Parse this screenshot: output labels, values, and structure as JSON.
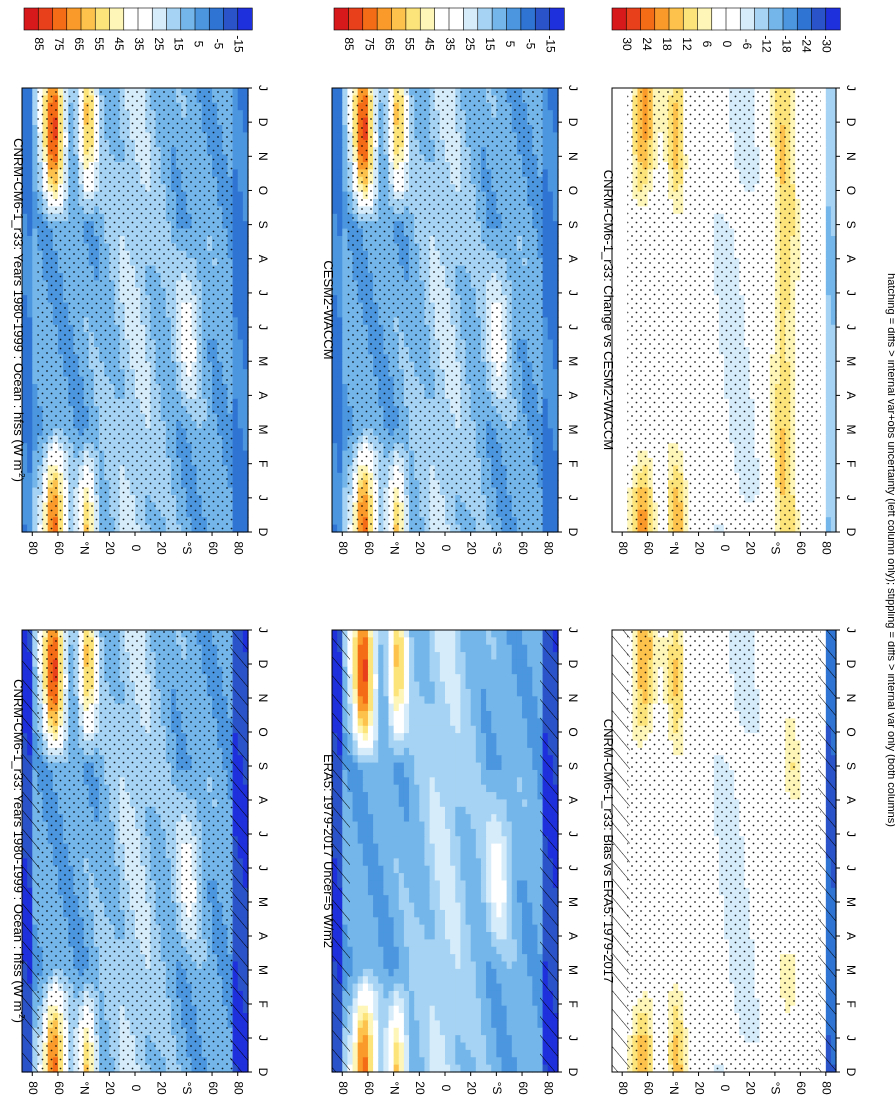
{
  "figure_caption": "hatching = diffs > internal var+obs uncertainty (left column only); stippling = diffs > internal var only (both columns)",
  "month_labels": [
    "D",
    "J",
    "F",
    "M",
    "A",
    "M",
    "J",
    "J",
    "A",
    "S",
    "O",
    "N",
    "D",
    "J"
  ],
  "lat_labels": [
    "80",
    "60",
    "°N",
    "20",
    "0",
    "20",
    "°S",
    "60",
    "80"
  ],
  "colors": {
    "abs_scale": [
      "#d7191c",
      "#e8401a",
      "#f46d16",
      "#f99a2a",
      "#fdc24b",
      "#fde47a",
      "#fef6b8",
      "#ffffff",
      "#ffffff",
      "#d6ecfb",
      "#a6d3f3",
      "#74b6ea",
      "#4b96df",
      "#2f74d3",
      "#2a52c9",
      "#1e2fdc"
    ],
    "diff_scale": [
      "#d7191c",
      "#e8401a",
      "#f46d16",
      "#f99a2a",
      "#fdc24b",
      "#fde47a",
      "#fef6b8",
      "#ffffff",
      "#ffffff",
      "#d6ecfb",
      "#a6d3f3",
      "#74b6ea",
      "#4b96df",
      "#2f74d3",
      "#2a52c9",
      "#1e2fdc"
    ]
  },
  "chart_data": [
    {
      "type": "heatmap",
      "title": "CNRM-CM6-1_r33: Years 1980-1999 : Ocean : hfss (W m⁻²)",
      "title_display": "CNRM-CM6-1_r33: Years 1980-1999 : Ocean : hfss (W m",
      "title_sup": "-2",
      "title_end": ")",
      "x": [
        "D",
        "J",
        "F",
        "M",
        "A",
        "M",
        "J",
        "J",
        "A",
        "S",
        "O",
        "N",
        "D",
        "J"
      ],
      "y": [
        "80N",
        "60N",
        "40N",
        "20N",
        "0",
        "20S",
        "40S",
        "60S",
        "80S"
      ],
      "colorbar_ticks": [
        "85",
        "75",
        "65",
        "55",
        "45",
        "35",
        "25",
        "15",
        "5",
        "-5",
        "-15"
      ],
      "hatching": true,
      "stippling": true
    },
    {
      "type": "heatmap",
      "title": "CNRM-CM6-1_r33: Years 1980-1999 : Ocean : hfss (W m⁻²)",
      "title_display": "CNRM-CM6-1_r33: Years 1980-1999 : Ocean : hfss (W m",
      "title_sup": "-2",
      "title_end": ")",
      "x": [
        "D",
        "J",
        "F",
        "M",
        "A",
        "M",
        "J",
        "J",
        "A",
        "S",
        "O",
        "N",
        "D",
        "J"
      ],
      "y": [
        "80N",
        "60N",
        "40N",
        "20N",
        "0",
        "20S",
        "40S",
        "60S",
        "80S"
      ],
      "colorbar_ticks": [
        "85",
        "75",
        "65",
        "55",
        "45",
        "35",
        "25",
        "15",
        "5",
        "-5",
        "-15"
      ],
      "hatching": false,
      "stippling": true
    },
    {
      "type": "heatmap",
      "title": "ERA5: 1979-2017 Uncer=5 W/m2",
      "x": [
        "D",
        "J",
        "F",
        "M",
        "A",
        "M",
        "J",
        "J",
        "A",
        "S",
        "O",
        "N",
        "D",
        "J"
      ],
      "y": [
        "80N",
        "60N",
        "40N",
        "20N",
        "0",
        "20S",
        "40S",
        "60S",
        "80S"
      ],
      "colorbar_ticks": [
        "85",
        "75",
        "65",
        "55",
        "45",
        "35",
        "25",
        "15",
        "5",
        "-5",
        "-15"
      ],
      "hatching": true,
      "stippling": false
    },
    {
      "type": "heatmap",
      "title": "CESM2-WACCM",
      "x": [
        "D",
        "J",
        "F",
        "M",
        "A",
        "M",
        "J",
        "J",
        "A",
        "S",
        "O",
        "N",
        "D",
        "J"
      ],
      "y": [
        "80N",
        "60N",
        "40N",
        "20N",
        "0",
        "20S",
        "40S",
        "60S",
        "80S"
      ],
      "colorbar_ticks": [
        "85",
        "75",
        "65",
        "55",
        "45",
        "35",
        "25",
        "15",
        "5",
        "-5",
        "-15"
      ],
      "hatching": false,
      "stippling": true
    },
    {
      "type": "heatmap",
      "title": "CNRM-CM6-1_r33: Bias vs ERA5: 1979-2017",
      "x": [
        "D",
        "J",
        "F",
        "M",
        "A",
        "M",
        "J",
        "J",
        "A",
        "S",
        "O",
        "N",
        "D",
        "J"
      ],
      "y": [
        "80N",
        "60N",
        "40N",
        "20N",
        "0",
        "20S",
        "40S",
        "60S",
        "80S"
      ],
      "colorbar_ticks": [
        "30",
        "24",
        "18",
        "12",
        "6",
        "0",
        "-6",
        "-12",
        "-18",
        "-24",
        "-30"
      ],
      "hatching": true,
      "stippling": true
    },
    {
      "type": "heatmap",
      "title": "CNRM-CM6-1_r33: Change vs CESM2-WACCM",
      "x": [
        "D",
        "J",
        "F",
        "M",
        "A",
        "M",
        "J",
        "J",
        "A",
        "S",
        "O",
        "N",
        "D",
        "J"
      ],
      "y": [
        "80N",
        "60N",
        "40N",
        "20N",
        "0",
        "20S",
        "40S",
        "60S",
        "80S"
      ],
      "colorbar_ticks": [
        "30",
        "24",
        "18",
        "12",
        "6",
        "0",
        "-6",
        "-12",
        "-18",
        "-24",
        "-30"
      ],
      "hatching": false,
      "stippling": true
    }
  ]
}
